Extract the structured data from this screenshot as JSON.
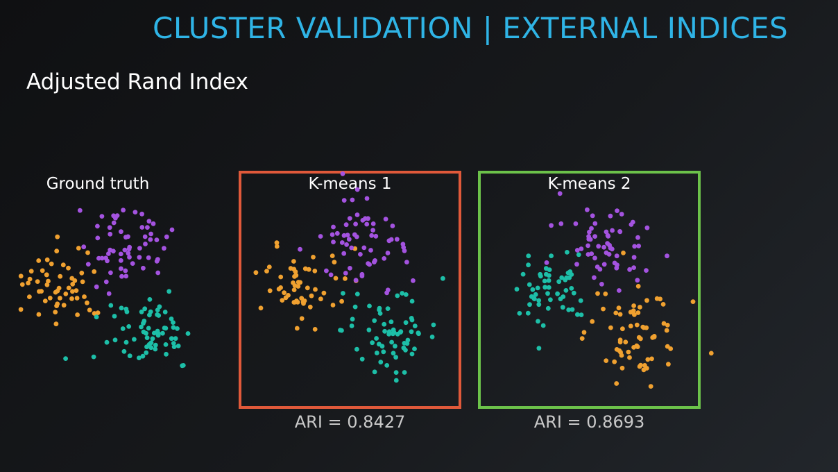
{
  "title": "CLUSTER VALIDATION | EXTERNAL INDICES",
  "subtitle": "Adjusted Rand Index",
  "colors": {
    "title": "#2fb4e6",
    "orange": "#f0a130",
    "purple": "#a453e0",
    "teal": "#1dbfa8",
    "frame_kmeans1": "#e0593a",
    "frame_kmeans2": "#6cc24a"
  },
  "panels": [
    {
      "label": "Ground truth",
      "ari_text": ""
    },
    {
      "label": "K-means 1",
      "ari_text": "ARI = 0.8427",
      "frame_color": "#e0593a"
    },
    {
      "label": "K-means 2",
      "ari_text": "ARI = 0.8693",
      "frame_color": "#6cc24a"
    }
  ],
  "chart_data": [
    {
      "type": "scatter",
      "title": "Ground truth",
      "clusters": [
        {
          "color": "orange",
          "count": 55
        },
        {
          "color": "purple",
          "count": 60
        },
        {
          "color": "teal",
          "count": 65
        }
      ]
    },
    {
      "type": "scatter",
      "title": "K-means 1",
      "annotation": "ARI = 0.8427",
      "ari": 0.8427,
      "clusters": [
        {
          "color": "orange",
          "count": 55
        },
        {
          "color": "purple",
          "count": 60
        },
        {
          "color": "teal",
          "count": 65
        }
      ]
    },
    {
      "type": "scatter",
      "title": "K-means 2",
      "annotation": "ARI = 0.8693",
      "ari": 0.8693,
      "clusters": [
        {
          "color": "teal",
          "count": 55
        },
        {
          "color": "purple",
          "count": 60
        },
        {
          "color": "orange",
          "count": 65
        }
      ]
    }
  ]
}
